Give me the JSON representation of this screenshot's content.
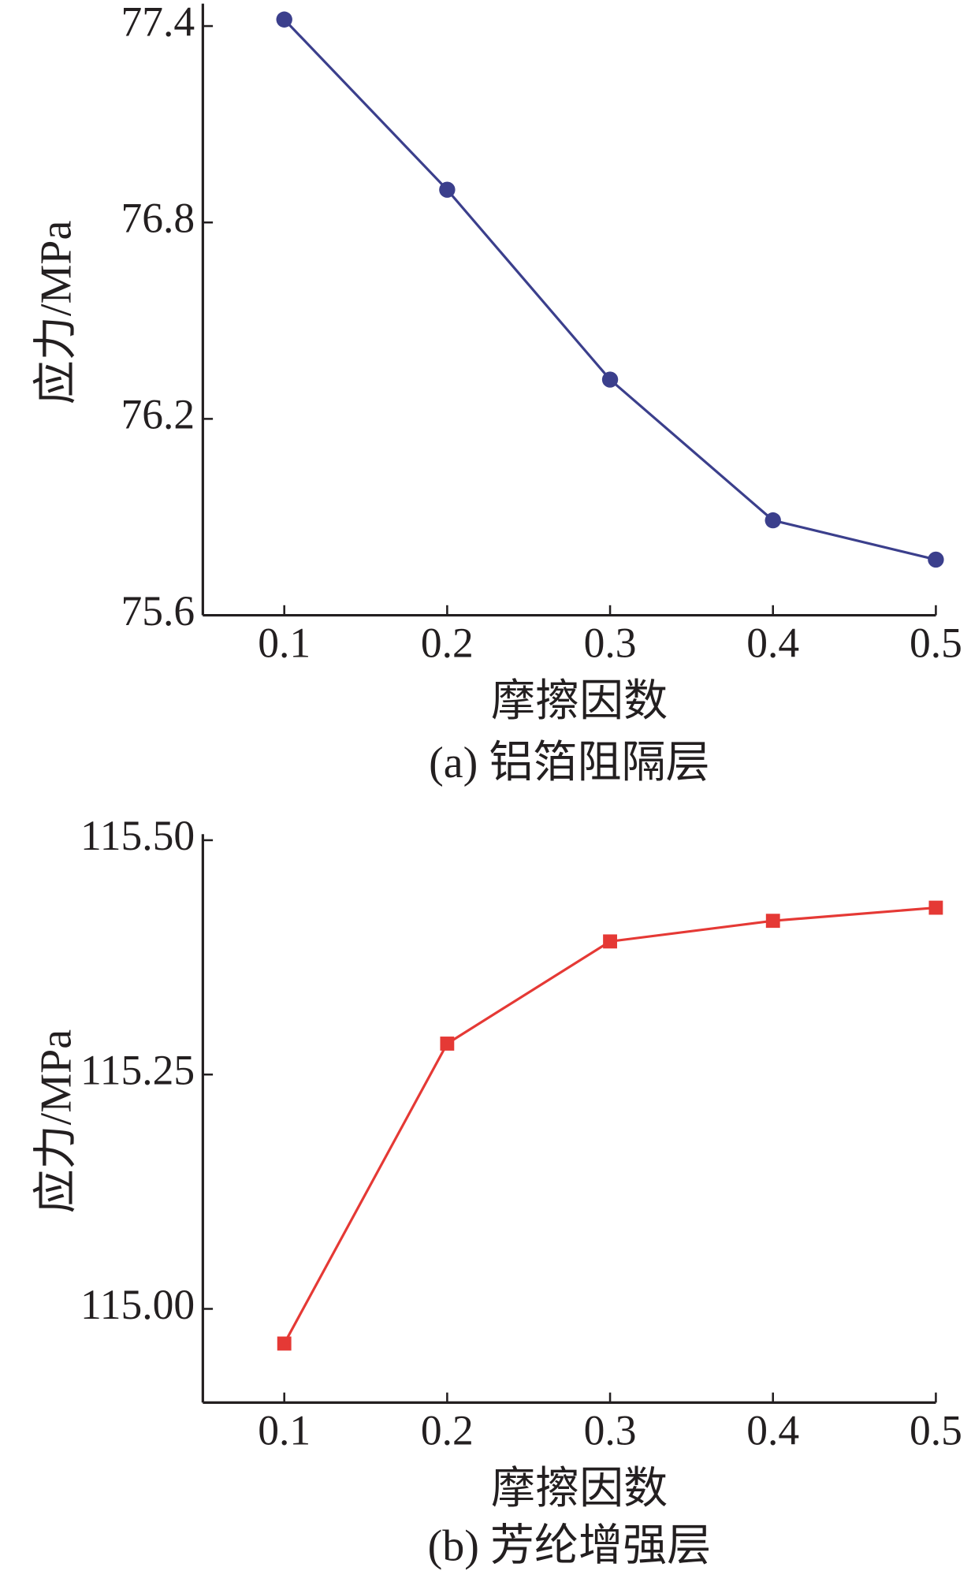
{
  "chart_data": [
    {
      "type": "line",
      "caption": "(a) 铝箔阻隔层",
      "x_label": "摩擦因数",
      "y_label": "应力/MPa",
      "x": [
        0.1,
        0.2,
        0.3,
        0.4,
        0.5
      ],
      "values": [
        77.42,
        76.9,
        76.32,
        75.89,
        75.77
      ],
      "color": "#3b3f8c",
      "marker": "circle",
      "xlim": [
        0.05,
        0.5
      ],
      "xticks": [
        0.1,
        0.2,
        0.3,
        0.4,
        0.5
      ],
      "ylim": [
        75.6,
        77.45
      ],
      "yticks": [
        75.6,
        76.2,
        76.8,
        77.4
      ]
    },
    {
      "type": "line",
      "caption": "(b) 芳纶增强层",
      "x_label": "摩擦因数",
      "y_label": "应力/MPa",
      "x": [
        0.1,
        0.2,
        0.3,
        0.4,
        0.5
      ],
      "values": [
        114.963,
        115.283,
        115.392,
        115.414,
        115.428
      ],
      "color": "#e53935",
      "marker": "square",
      "xlim": [
        0.05,
        0.5
      ],
      "xticks": [
        0.1,
        0.2,
        0.3,
        0.4,
        0.5
      ],
      "ylim": [
        114.9,
        115.5
      ],
      "yticks": [
        {
          "value": 115.0,
          "label": "115.00"
        },
        115.25,
        {
          "value": 115.5,
          "label": "115.50"
        }
      ]
    }
  ]
}
